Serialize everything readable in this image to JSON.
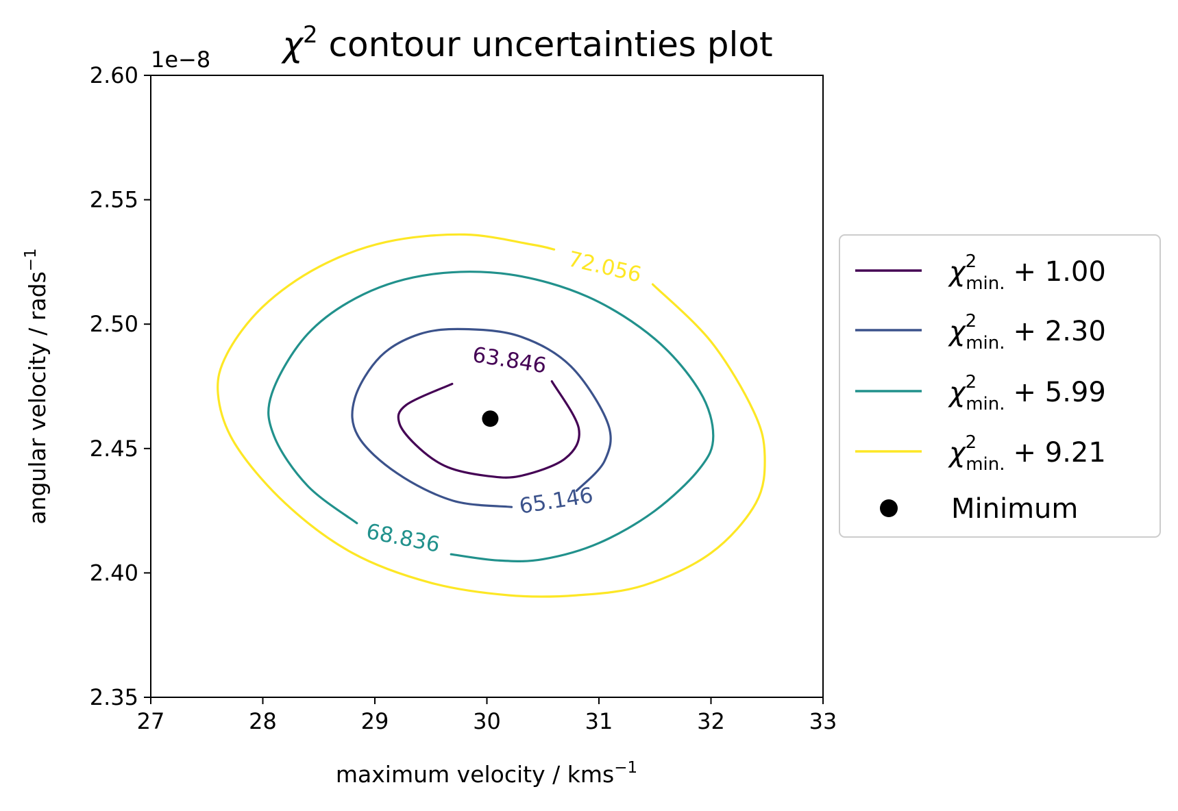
{
  "chart_data": {
    "type": "contour",
    "title": {
      "symbol": "χ",
      "superscript": "2",
      "rest": " contour uncertainties plot"
    },
    "xlabel": {
      "text": "maximum velocity / kms",
      "superscript": "−1"
    },
    "ylabel": {
      "text": "angular velocity / rads",
      "superscript": "−1"
    },
    "y_offset_label": "1e−8",
    "xlim": [
      27,
      33
    ],
    "ylim": [
      2.35,
      2.6
    ],
    "xticks": [
      {
        "value": 27,
        "label": "27"
      },
      {
        "value": 28,
        "label": "28"
      },
      {
        "value": 29,
        "label": "29"
      },
      {
        "value": 30,
        "label": "30"
      },
      {
        "value": 31,
        "label": "31"
      },
      {
        "value": 32,
        "label": "32"
      },
      {
        "value": 33,
        "label": "33"
      }
    ],
    "yticks": [
      {
        "value": 2.35,
        "label": "2.35"
      },
      {
        "value": 2.4,
        "label": "2.40"
      },
      {
        "value": 2.45,
        "label": "2.45"
      },
      {
        "value": 2.5,
        "label": "2.50"
      },
      {
        "value": 2.55,
        "label": "2.55"
      },
      {
        "value": 2.6,
        "label": "2.60"
      }
    ],
    "minimum": {
      "x": 30.03,
      "y": 2.462,
      "color": "#000000"
    },
    "contours": [
      {
        "level": "63.846",
        "offset": "1.00",
        "color": "#440154",
        "label_pos": {
          "x": 30.2,
          "y": 2.485
        },
        "points": [
          [
            29.69,
            2.476
          ],
          [
            29.28,
            2.4675
          ],
          [
            29.22,
            2.46
          ],
          [
            29.4,
            2.45
          ],
          [
            29.65,
            2.4425
          ],
          [
            30.0,
            2.439
          ],
          [
            30.3,
            2.439
          ],
          [
            30.7,
            2.446
          ],
          [
            30.82,
            2.458
          ],
          [
            30.58,
            2.477
          ]
        ]
      },
      {
        "level": "65.146",
        "offset": "2.30",
        "color": "#3b528b",
        "label_pos": {
          "x": 30.62,
          "y": 2.4285
        },
        "points": [
          [
            30.22,
            2.4265
          ],
          [
            29.7,
            2.429
          ],
          [
            29.2,
            2.44
          ],
          [
            28.85,
            2.455
          ],
          [
            28.82,
            2.47
          ],
          [
            29.05,
            2.487
          ],
          [
            29.4,
            2.496
          ],
          [
            29.8,
            2.498
          ],
          [
            30.3,
            2.495
          ],
          [
            30.75,
            2.483
          ],
          [
            31.08,
            2.46
          ],
          [
            31.05,
            2.445
          ],
          [
            30.8,
            2.433
          ]
        ]
      },
      {
        "level": "68.836",
        "offset": "5.99",
        "color": "#21918c",
        "label_pos": {
          "x": 29.25,
          "y": 2.4135
        },
        "points": [
          [
            29.68,
            2.4075
          ],
          [
            30.1,
            2.405
          ],
          [
            30.5,
            2.4055
          ],
          [
            31.0,
            2.412
          ],
          [
            31.5,
            2.425
          ],
          [
            31.9,
            2.442
          ],
          [
            32.02,
            2.455
          ],
          [
            31.9,
            2.473
          ],
          [
            31.5,
            2.494
          ],
          [
            30.9,
            2.511
          ],
          [
            30.2,
            2.52
          ],
          [
            29.5,
            2.52
          ],
          [
            28.9,
            2.512
          ],
          [
            28.4,
            2.496
          ],
          [
            28.08,
            2.472
          ],
          [
            28.1,
            2.455
          ],
          [
            28.4,
            2.435
          ],
          [
            28.84,
            2.42
          ]
        ]
      },
      {
        "level": "72.056",
        "offset": "9.21",
        "color": "#fde725",
        "label_pos": {
          "x": 31.05,
          "y": 2.5225
        },
        "points": [
          [
            31.48,
            2.516
          ],
          [
            32.0,
            2.493
          ],
          [
            32.38,
            2.465
          ],
          [
            32.48,
            2.447
          ],
          [
            32.4,
            2.428
          ],
          [
            32.0,
            2.408
          ],
          [
            31.4,
            2.395
          ],
          [
            30.8,
            2.391
          ],
          [
            30.2,
            2.391
          ],
          [
            29.5,
            2.396
          ],
          [
            28.8,
            2.408
          ],
          [
            28.2,
            2.428
          ],
          [
            27.75,
            2.452
          ],
          [
            27.6,
            2.472
          ],
          [
            27.68,
            2.488
          ],
          [
            28.0,
            2.507
          ],
          [
            28.5,
            2.523
          ],
          [
            29.1,
            2.533
          ],
          [
            29.8,
            2.536
          ],
          [
            30.4,
            2.532
          ],
          [
            30.6,
            2.53
          ]
        ]
      }
    ],
    "legend": {
      "placement": "center-right-outside",
      "entries": [
        {
          "kind": "line",
          "color": "#440154",
          "symbol": "χ",
          "sup": "2",
          "sub": "min.",
          "text": "+ 1.00"
        },
        {
          "kind": "line",
          "color": "#3b528b",
          "symbol": "χ",
          "sup": "2",
          "sub": "min.",
          "text": "+ 2.30"
        },
        {
          "kind": "line",
          "color": "#21918c",
          "symbol": "χ",
          "sup": "2",
          "sub": "min.",
          "text": "+ 5.99"
        },
        {
          "kind": "line",
          "color": "#fde725",
          "symbol": "χ",
          "sup": "2",
          "sub": "min.",
          "text": "+ 9.21"
        },
        {
          "kind": "marker",
          "color": "#000000",
          "label": "Minimum"
        }
      ]
    }
  }
}
